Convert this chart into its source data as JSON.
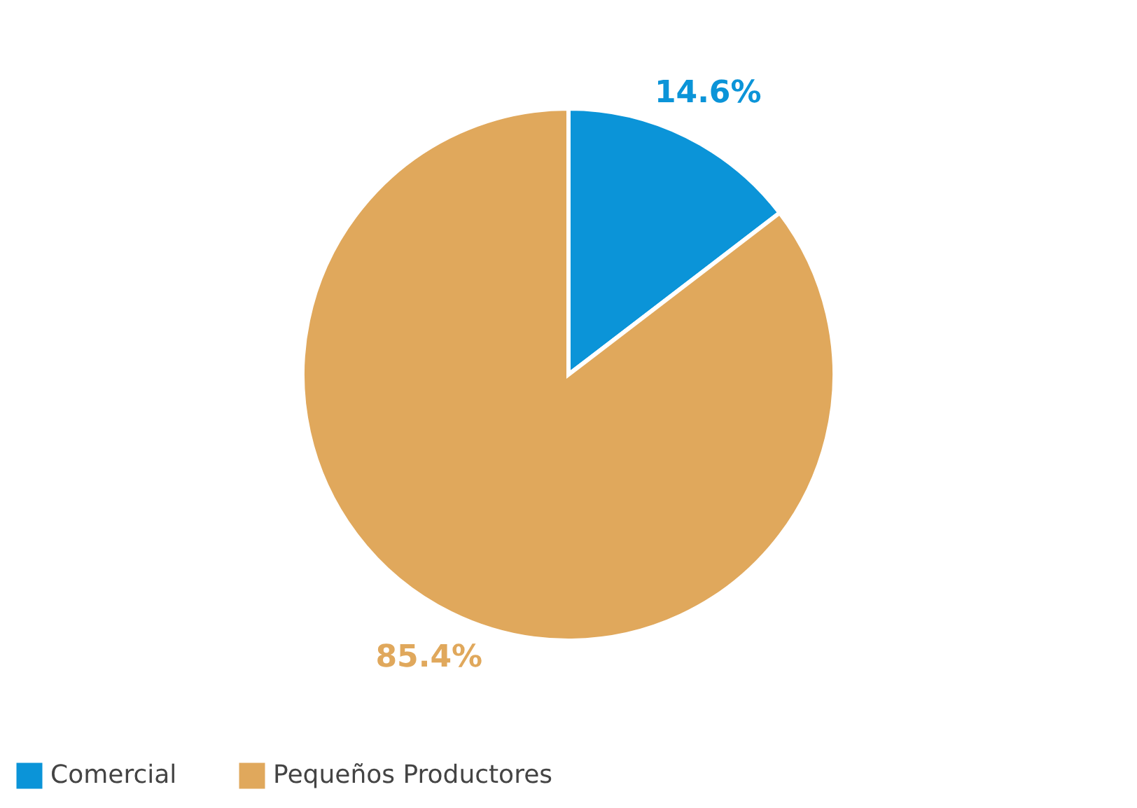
{
  "chart_data": {
    "type": "pie",
    "categories": [
      "Comercial",
      "Pequeños Productores"
    ],
    "values": [
      14.6,
      85.4
    ],
    "colors": [
      "#0b94d8",
      "#e0a85c"
    ],
    "value_labels": [
      "14.6%",
      "85.4%"
    ],
    "legend": "bottom"
  }
}
